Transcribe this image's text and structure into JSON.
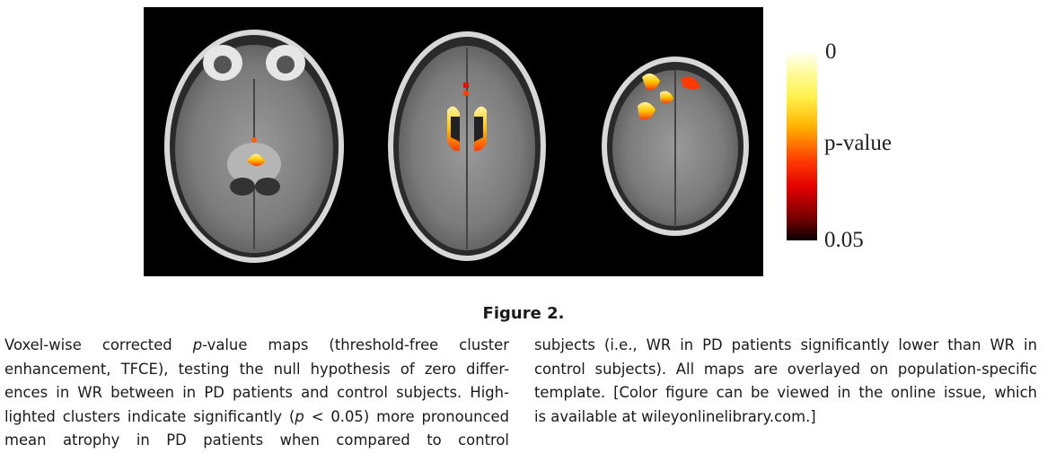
{
  "figure": {
    "panels": [
      {
        "name": "axial-slice-1"
      },
      {
        "name": "axial-slice-2"
      },
      {
        "name": "axial-slice-3"
      }
    ],
    "colorbar": {
      "top_label": "0",
      "middle_label": "p-value",
      "bottom_label": "0.05",
      "colors": [
        "#ffffff",
        "#fff04a",
        "#ffb400",
        "#ff3c00",
        "#e30000",
        "#7a0000",
        "#0a0000"
      ]
    },
    "title": "Figure 2."
  },
  "caption": {
    "left_lines": [
      {
        "segments": [
          {
            "text": "Voxel-wise corrected "
          },
          {
            "text": "p",
            "italic": true
          },
          {
            "text": "-value maps (threshold-free cluster"
          }
        ]
      },
      {
        "segments": [
          {
            "text": "enhancement, TFCE), testing the null hypothesis of zero differ-"
          }
        ]
      },
      {
        "segments": [
          {
            "text": "ences in WR between in PD patients and control subjects. High-"
          }
        ]
      },
      {
        "segments": [
          {
            "text": "lighted clusters indicate significantly ("
          },
          {
            "text": "p",
            "italic": true
          },
          {
            "text": " < 0.05) more pronounced"
          }
        ]
      },
      {
        "segments": [
          {
            "text": "mean atrophy in PD patients when compared to control"
          }
        ]
      }
    ],
    "right_lines": [
      {
        "segments": [
          {
            "text": "subjects (i.e., WR in PD patients significantly lower than WR in"
          }
        ]
      },
      {
        "segments": [
          {
            "text": "control subjects). All maps are overlayed on population-specific"
          }
        ]
      },
      {
        "segments": [
          {
            "text": "template. [Color figure can be viewed in the online issue, which"
          }
        ]
      },
      {
        "segments": [
          {
            "text": "is available at wileyonlinelibrary.com.]"
          }
        ]
      }
    ]
  }
}
